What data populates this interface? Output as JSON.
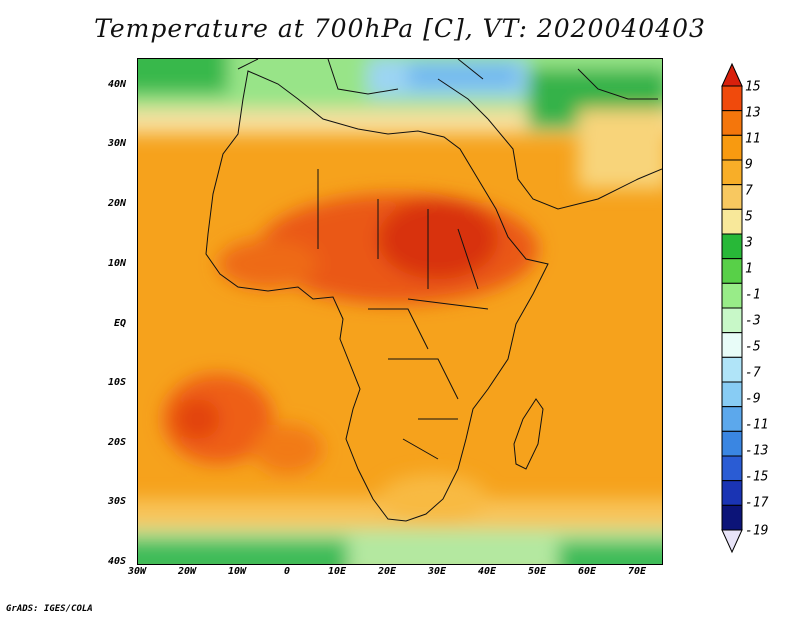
{
  "title": "Temperature at 700hPa [C], VT: 2020040403",
  "lat_ticks": [
    "40N",
    "30N",
    "20N",
    "10N",
    "EQ",
    "10S",
    "20S",
    "30S",
    "40S"
  ],
  "lon_ticks": [
    "30W",
    "20W",
    "10W",
    "0",
    "10E",
    "20E",
    "30E",
    "40E",
    "50E",
    "60E",
    "70E"
  ],
  "map_extent": {
    "lon_min": -30,
    "lon_max": 76,
    "lat_min": -40,
    "lat_max": 45
  },
  "colorbar": {
    "labels": [
      "15",
      "13",
      "11",
      "9",
      "7",
      "5",
      "3",
      "1",
      "-1",
      "-3",
      "-5",
      "-7",
      "-9",
      "-11",
      "-13",
      "-15",
      "-17",
      "-19"
    ],
    "colors": [
      "#d8200c",
      "#f04a0c",
      "#f4760c",
      "#f89a10",
      "#f8ae28",
      "#f8c860",
      "#f8e89a",
      "#28b838",
      "#58d048",
      "#98ec88",
      "#c8f8c8",
      "#e8fcf8",
      "#b0e4f8",
      "#88ccf4",
      "#5ca8ec",
      "#3a86e2",
      "#2a5cd4",
      "#1a34b4",
      "#0c1478",
      "#e8e4f8"
    ]
  },
  "credit": "GrADS: IGES/COLA"
}
